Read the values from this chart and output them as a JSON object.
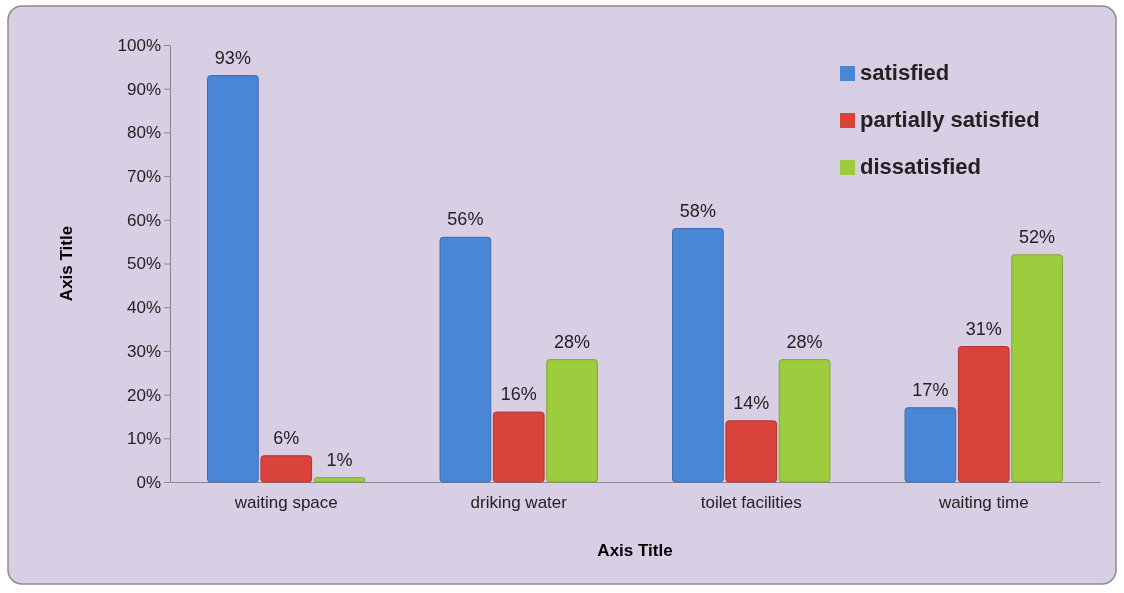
{
  "chart_data": {
    "type": "bar",
    "xlabel": "Axis Title",
    "ylabel": "Axis Title",
    "categories": [
      "waiting space",
      "driking water",
      "toilet facilities",
      "waiting time"
    ],
    "series": [
      {
        "name": "satisfied",
        "color": "#4a86d6",
        "values": [
          93,
          56,
          58,
          17
        ],
        "value_labels": [
          "93%",
          "56%",
          "58%",
          "17%"
        ]
      },
      {
        "name": "partially satisfied",
        "color": "#d9433b",
        "values": [
          6,
          16,
          14,
          31
        ],
        "value_labels": [
          "6%",
          "16%",
          "14%",
          "31%"
        ]
      },
      {
        "name": "dissatisfied",
        "color": "#9dcc3e",
        "values": [
          1,
          28,
          28,
          52
        ],
        "value_labels": [
          "1%",
          "28%",
          "28%",
          "52%"
        ]
      }
    ],
    "ylim": [
      0,
      100
    ],
    "yticks": [
      {
        "value": 0,
        "label": "0%"
      },
      {
        "value": 10,
        "label": "10%"
      },
      {
        "value": 20,
        "label": "20%"
      },
      {
        "value": 30,
        "label": "30%"
      },
      {
        "value": 40,
        "label": "40%"
      },
      {
        "value": 50,
        "label": "50%"
      },
      {
        "value": 60,
        "label": "60%"
      },
      {
        "value": 70,
        "label": "70%"
      },
      {
        "value": 80,
        "label": "80%"
      },
      {
        "value": 90,
        "label": "90%"
      },
      {
        "value": 100,
        "label": "100%"
      }
    ],
    "grid": false,
    "legend": "top right"
  }
}
